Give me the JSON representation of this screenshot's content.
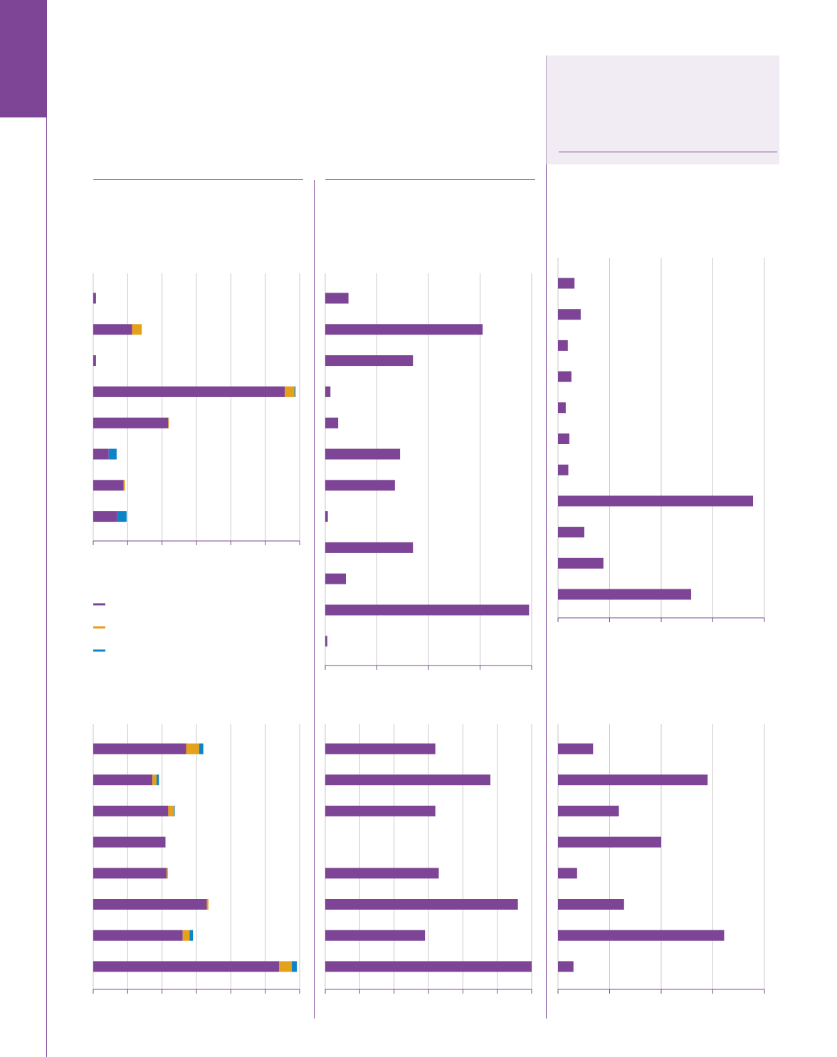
{
  "colors": {
    "brand": "#7e4596",
    "series_purple": "#7e4596",
    "series_orange": "#e6a11b",
    "series_blue": "#0b85c8",
    "grid": "#c9c9c9",
    "axis": "#7e4596",
    "panel": "#f1ebf4"
  },
  "legend": {
    "items": [
      {
        "color": "#7e4596",
        "label": ""
      },
      {
        "color": "#e6a11b",
        "label": ""
      },
      {
        "color": "#0b85c8",
        "label": ""
      }
    ]
  },
  "chart_data": [
    {
      "type": "bar",
      "orientation": "horizontal",
      "stacked": true,
      "title": "",
      "xlim": [
        0,
        6
      ],
      "grid": true,
      "categories": [
        "",
        "",
        "",
        "",
        "",
        "",
        "",
        ""
      ],
      "series": [
        {
          "color": "#7e4596",
          "values": [
            0.08,
            1.13,
            0.08,
            5.57,
            2.18,
            0.45,
            0.88,
            0.7
          ]
        },
        {
          "color": "#e6a11b",
          "values": [
            0,
            0.28,
            0,
            0.28,
            0.02,
            0,
            0.04,
            0
          ]
        },
        {
          "color": "#0b85c8",
          "values": [
            0,
            0,
            0,
            0.03,
            0,
            0.23,
            0,
            0.27
          ]
        }
      ]
    },
    {
      "type": "bar",
      "orientation": "horizontal",
      "title": "",
      "xlim": [
        0,
        4
      ],
      "grid": true,
      "categories": [
        "",
        "",
        "",
        "",
        "",
        "",
        "",
        "",
        "",
        "",
        "",
        ""
      ],
      "values": [
        0.45,
        3.05,
        1.7,
        0.1,
        0.25,
        1.45,
        1.35,
        0.05,
        1.7,
        0.4,
        3.95,
        0.04
      ]
    },
    {
      "type": "bar",
      "orientation": "horizontal",
      "title": "",
      "xlim": [
        0,
        4
      ],
      "grid": true,
      "categories": [
        "",
        "",
        "",
        "",
        "",
        "",
        "",
        "",
        "",
        "",
        ""
      ],
      "values": [
        0.32,
        0.44,
        0.19,
        0.26,
        0.15,
        0.22,
        0.2,
        3.78,
        0.51,
        0.88,
        2.58
      ]
    },
    {
      "type": "bar",
      "orientation": "horizontal",
      "stacked": true,
      "title": "",
      "xlim": [
        0,
        6
      ],
      "grid": true,
      "categories": [
        "",
        "",
        "",
        "",
        "",
        "",
        "",
        ""
      ],
      "series": [
        {
          "color": "#7e4596",
          "values": [
            2.7,
            1.72,
            2.18,
            2.1,
            2.13,
            3.3,
            2.6,
            5.4
          ]
        },
        {
          "color": "#e6a11b",
          "values": [
            0.38,
            0.12,
            0.17,
            0,
            0.04,
            0.05,
            0.2,
            0.37
          ]
        },
        {
          "color": "#0b85c8",
          "values": [
            0.12,
            0.07,
            0.02,
            0,
            0,
            0,
            0.1,
            0.15
          ]
        }
      ]
    },
    {
      "type": "bar",
      "orientation": "horizontal",
      "title": "",
      "xlim": [
        0,
        6
      ],
      "grid": true,
      "categories": [
        "",
        "",
        "",
        "",
        "",
        "",
        "",
        ""
      ],
      "values": [
        3.2,
        4.8,
        3.2,
        0,
        3.3,
        5.6,
        2.9,
        6.0
      ]
    },
    {
      "type": "bar",
      "orientation": "horizontal",
      "title": "",
      "xlim": [
        0,
        4
      ],
      "grid": true,
      "categories": [
        "",
        "",
        "",
        "",
        "",
        "",
        "",
        ""
      ],
      "values": [
        0.68,
        2.9,
        1.18,
        2.0,
        0.37,
        1.28,
        3.22,
        0.3
      ]
    }
  ]
}
